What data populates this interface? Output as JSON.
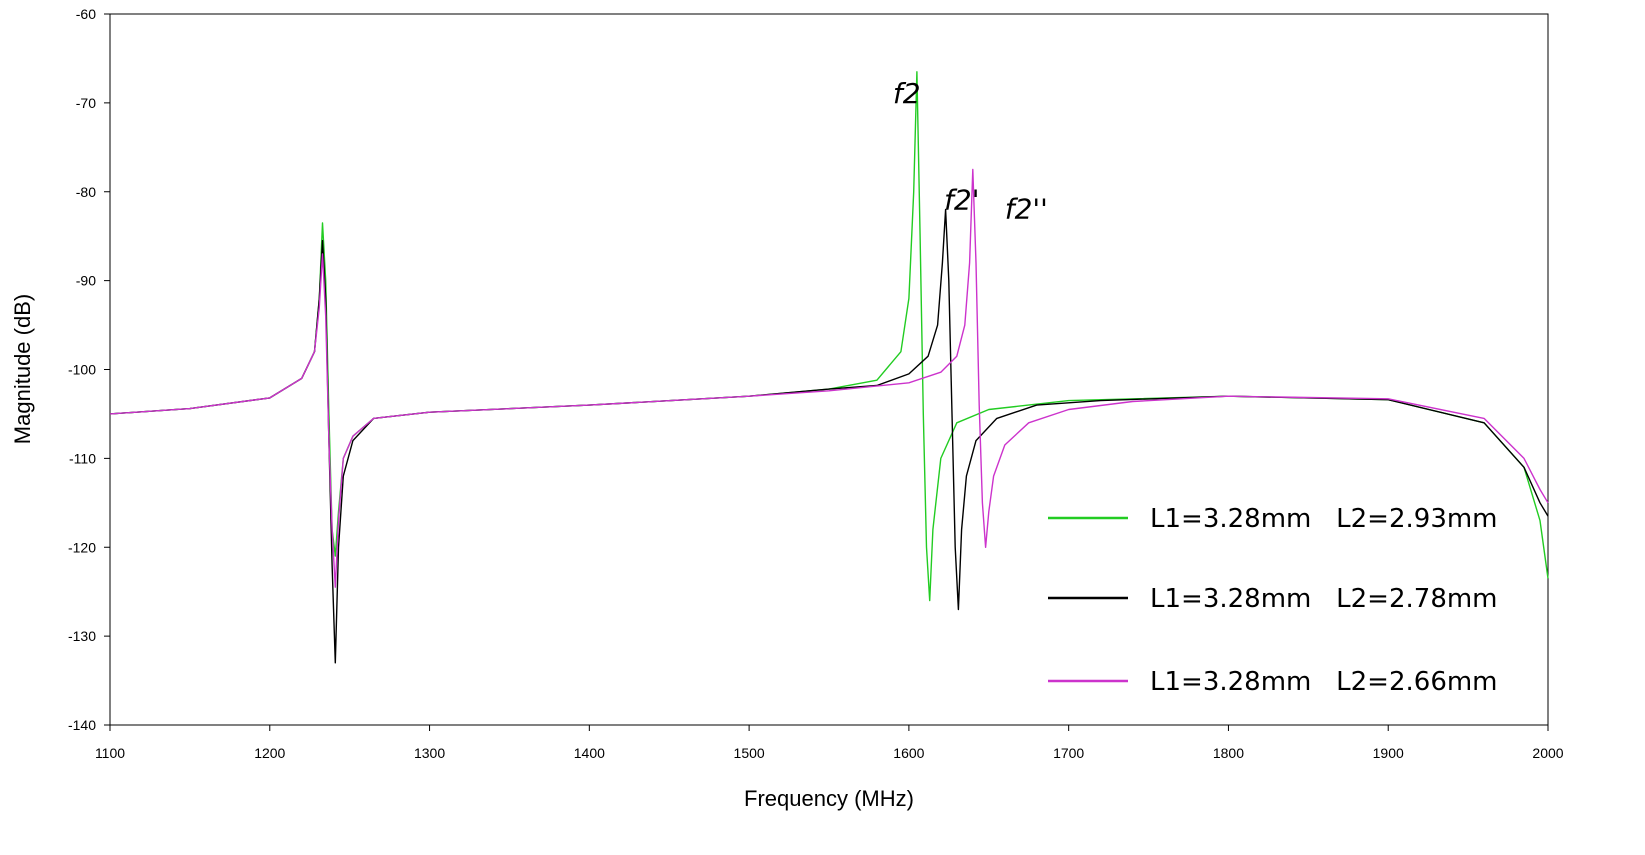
{
  "chart_data": {
    "type": "line",
    "xlabel": "Frequency (MHz)",
    "ylabel": "Magnitude (dB)",
    "xlim": [
      1100,
      2000
    ],
    "ylim": [
      -140,
      -60
    ],
    "xticks": [
      1100,
      1200,
      1300,
      1400,
      1500,
      1600,
      1700,
      1800,
      1900,
      2000
    ],
    "yticks": [
      -60,
      -70,
      -80,
      -90,
      -100,
      -110,
      -120,
      -130,
      -140
    ],
    "grid": false,
    "legend_position": "lower-right",
    "annotations": [
      {
        "text": "f2",
        "x": 1590,
        "y": -70
      },
      {
        "text": "f2'",
        "x": 1622,
        "y": -82
      },
      {
        "text": "f2''",
        "x": 1660,
        "y": -83
      }
    ],
    "series": [
      {
        "name": "L1=3.28mm   L2=2.93mm",
        "color": "#22cc22",
        "x": [
          1100,
          1150,
          1200,
          1220,
          1228,
          1231,
          1233,
          1235,
          1237,
          1239,
          1241,
          1243,
          1246,
          1252,
          1265,
          1300,
          1400,
          1500,
          1550,
          1580,
          1595,
          1600,
          1603,
          1605,
          1607,
          1609,
          1611,
          1613,
          1615,
          1620,
          1630,
          1650,
          1700,
          1800,
          1900,
          1960,
          1985,
          1995,
          2000
        ],
        "y": [
          -105.0,
          -104.4,
          -103.2,
          -101.0,
          -98.0,
          -92.0,
          -83.5,
          -90.0,
          -105.0,
          -118.0,
          -121.0,
          -116.0,
          -110.0,
          -107.5,
          -105.5,
          -104.8,
          -104.0,
          -103.0,
          -102.2,
          -101.2,
          -98.0,
          -92.0,
          -80.0,
          -66.5,
          -85.0,
          -105.0,
          -120.0,
          -126.0,
          -118.0,
          -110.0,
          -106.0,
          -104.5,
          -103.5,
          -103.0,
          -103.4,
          -106.0,
          -111.0,
          -117.0,
          -123.5
        ]
      },
      {
        "name": "L1=3.28mm   L2=2.78mm",
        "color": "#000000",
        "x": [
          1100,
          1150,
          1200,
          1220,
          1228,
          1231,
          1233,
          1235,
          1237,
          1239,
          1241,
          1243,
          1246,
          1252,
          1265,
          1300,
          1400,
          1500,
          1550,
          1580,
          1600,
          1612,
          1618,
          1621,
          1623,
          1625,
          1627,
          1629,
          1631,
          1633,
          1636,
          1642,
          1655,
          1680,
          1720,
          1800,
          1900,
          1960,
          1985,
          1995,
          2000
        ],
        "y": [
          -105.0,
          -104.4,
          -103.2,
          -101.0,
          -98.0,
          -92.0,
          -85.5,
          -92.0,
          -108.0,
          -122.0,
          -133.0,
          -120.0,
          -112.0,
          -108.0,
          -105.5,
          -104.8,
          -104.0,
          -103.0,
          -102.2,
          -101.8,
          -100.5,
          -98.5,
          -95.0,
          -88.0,
          -82.0,
          -90.0,
          -105.0,
          -120.0,
          -127.0,
          -118.0,
          -112.0,
          -108.0,
          -105.5,
          -104.0,
          -103.5,
          -103.0,
          -103.4,
          -106.0,
          -111.0,
          -115.0,
          -116.5
        ]
      },
      {
        "name": "L1=3.28mm   L2=2.66mm",
        "color": "#cc33cc",
        "x": [
          1100,
          1150,
          1200,
          1220,
          1228,
          1231,
          1233,
          1235,
          1237,
          1239,
          1241,
          1243,
          1246,
          1252,
          1265,
          1300,
          1400,
          1500,
          1550,
          1600,
          1620,
          1630,
          1635,
          1638,
          1640,
          1642,
          1644,
          1646,
          1648,
          1650,
          1653,
          1660,
          1675,
          1700,
          1740,
          1800,
          1900,
          1960,
          1985,
          1995,
          2000
        ],
        "y": [
          -105.0,
          -104.4,
          -103.2,
          -101.0,
          -98.0,
          -93.0,
          -87.0,
          -94.0,
          -108.0,
          -118.0,
          -124.5,
          -117.0,
          -110.0,
          -107.5,
          -105.5,
          -104.8,
          -104.0,
          -103.0,
          -102.4,
          -101.5,
          -100.3,
          -98.5,
          -95.0,
          -88.0,
          -77.5,
          -88.0,
          -104.0,
          -115.0,
          -120.0,
          -116.0,
          -112.0,
          -108.5,
          -106.0,
          -104.5,
          -103.6,
          -103.0,
          -103.3,
          -105.5,
          -110.0,
          -113.5,
          -115.0
        ]
      }
    ]
  }
}
